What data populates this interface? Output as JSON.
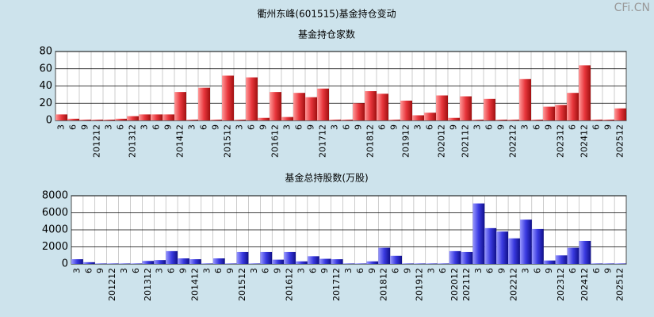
{
  "title": "衢州东峰(601515)基金持仓变动",
  "watermark": "CFi.CN",
  "chart_data": [
    {
      "type": "bar",
      "title": "基金持仓家数",
      "color": "#e8363c",
      "grid": true,
      "categories": [
        "3",
        "6",
        "9",
        "201212",
        "3",
        "6",
        "201312",
        "3",
        "6",
        "9",
        "201412",
        "3",
        "6",
        "9",
        "201512",
        "3",
        "6",
        "9",
        "201612",
        "3",
        "6",
        "9",
        "201712",
        "3",
        "6",
        "9",
        "201812",
        "6",
        "9",
        "201912",
        "3",
        "6",
        "202012",
        "9",
        "202112",
        "3",
        "6",
        "9",
        "202212",
        "3",
        "6",
        "9",
        "202312",
        "6",
        "202412",
        "6",
        "9",
        "202512"
      ],
      "values": [
        7,
        2,
        1,
        1,
        1,
        2,
        5,
        7,
        7,
        7,
        33,
        1,
        38,
        1,
        52,
        1,
        50,
        3,
        33,
        4,
        32,
        27,
        37,
        1,
        1,
        20,
        34,
        31,
        1,
        23,
        6,
        9,
        29,
        3,
        28,
        1,
        25,
        1,
        1,
        48,
        1,
        16,
        18,
        32,
        64,
        1,
        1,
        14
      ],
      "ylim": [
        0,
        80
      ],
      "yticks": [
        0,
        20,
        40,
        60,
        80
      ]
    },
    {
      "type": "bar",
      "title": "基金总持股数(万股)",
      "color": "#3a3ae0",
      "grid": true,
      "categories": [
        "3",
        "6",
        "9",
        "201212",
        "3",
        "6",
        "201312",
        "3",
        "6",
        "9",
        "201412",
        "3",
        "6",
        "9",
        "201512",
        "3",
        "6",
        "9",
        "201612",
        "3",
        "6",
        "9",
        "201712",
        "3",
        "6",
        "9",
        "201812",
        "6",
        "9",
        "201912",
        "3",
        "6",
        "202012",
        "202112",
        "3",
        "6",
        "9",
        "202212",
        "3",
        "6",
        "9",
        "202312",
        "6",
        "202412",
        "6",
        "9",
        "202512"
      ],
      "values": [
        550,
        200,
        50,
        50,
        50,
        50,
        350,
        450,
        1500,
        650,
        550,
        50,
        650,
        50,
        1400,
        50,
        1400,
        500,
        1400,
        300,
        900,
        600,
        550,
        50,
        50,
        300,
        1900,
        950,
        50,
        50,
        50,
        50,
        1500,
        1400,
        7100,
        4200,
        3800,
        3000,
        5200,
        4100,
        400,
        1000,
        1900,
        2700,
        50,
        50,
        50
      ],
      "ylim": [
        0,
        8000
      ],
      "yticks": [
        0,
        2000,
        4000,
        6000,
        8000
      ]
    }
  ]
}
